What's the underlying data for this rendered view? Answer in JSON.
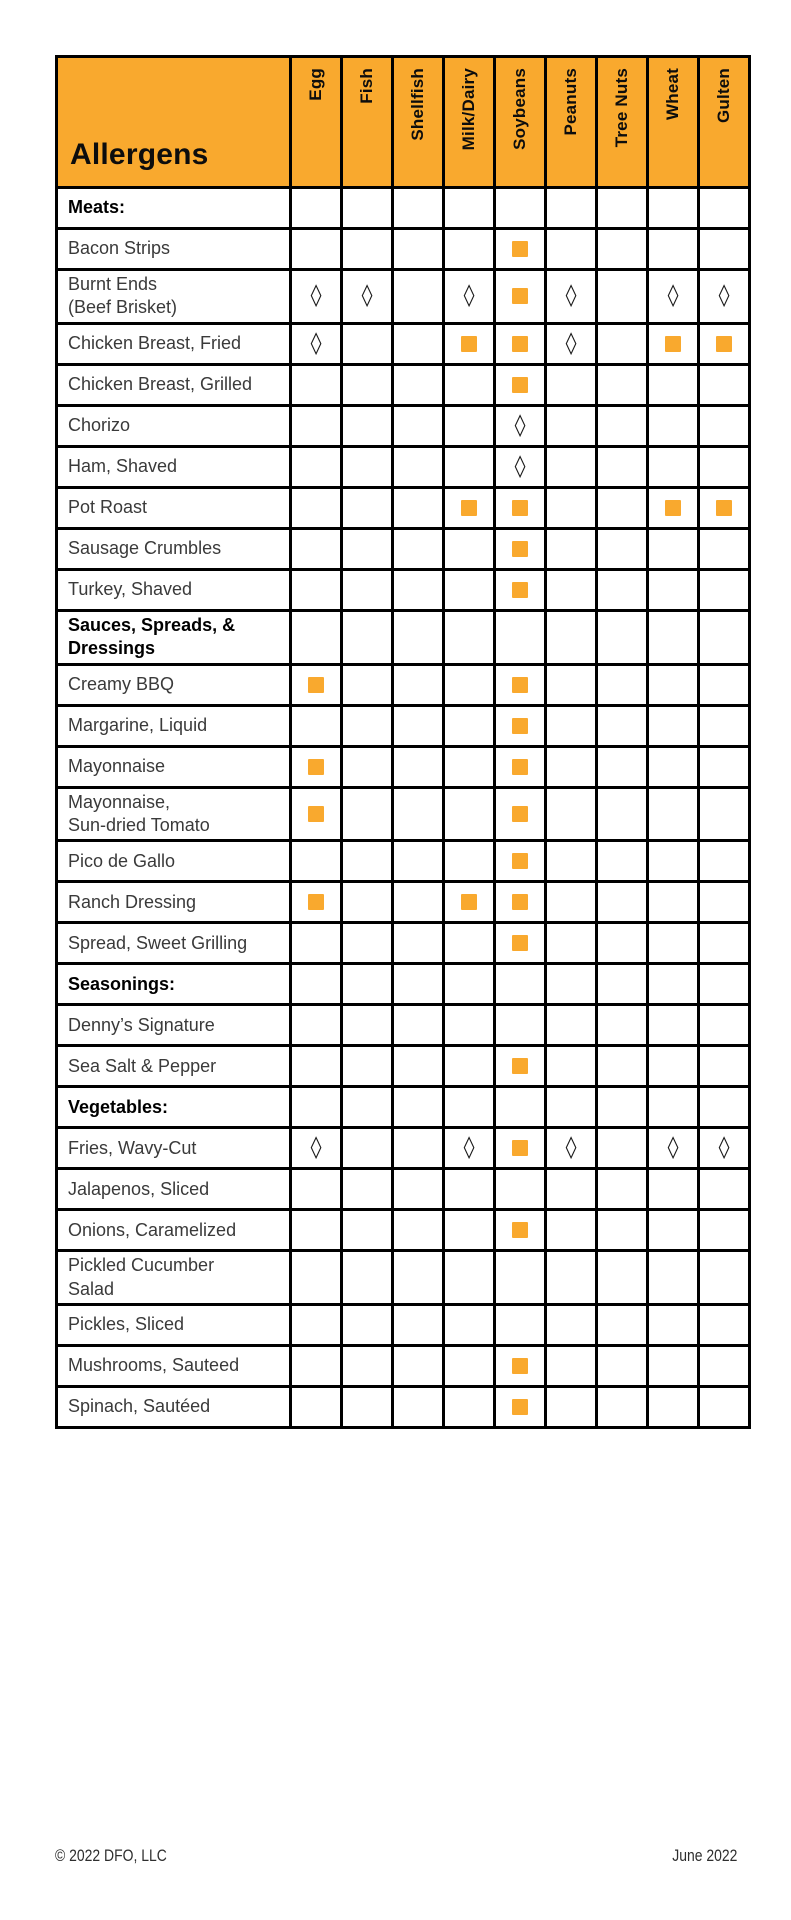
{
  "colors": {
    "accent": "#F9A92E",
    "grid": "#000000",
    "text": "#3a3a3a",
    "heading_text": "#0d0d0d"
  },
  "marks": {
    "square_glyph": "■",
    "square_meaning": "contains-allergen",
    "diamond_glyph": "◊",
    "diamond_meaning": "may-contain-allergen"
  },
  "table": {
    "corner_label": "Allergens",
    "columns": [
      "Egg",
      "Fish",
      "Shellfish",
      "Milk/Dairy",
      "Soybeans",
      "Peanuts",
      "Tree Nuts",
      "Wheat",
      "Gulten"
    ],
    "rows": [
      {
        "label": "Meats:",
        "section": true,
        "marks": [
          "",
          "",
          "",
          "",
          "",
          "",
          "",
          "",
          ""
        ]
      },
      {
        "label": "Bacon Strips",
        "section": false,
        "marks": [
          "",
          "",
          "",
          "",
          "square",
          "",
          "",
          "",
          ""
        ]
      },
      {
        "label": "Burnt Ends\n(Beef Brisket)",
        "section": false,
        "marks": [
          "diamond",
          "diamond",
          "",
          "diamond",
          "square",
          "diamond",
          "",
          "diamond",
          "diamond"
        ]
      },
      {
        "label": "Chicken Breast, Fried",
        "section": false,
        "marks": [
          "diamond",
          "",
          "",
          "square",
          "square",
          "diamond",
          "",
          "square",
          "square"
        ]
      },
      {
        "label": "Chicken Breast, Grilled",
        "section": false,
        "marks": [
          "",
          "",
          "",
          "",
          "square",
          "",
          "",
          "",
          ""
        ]
      },
      {
        "label": "Chorizo",
        "section": false,
        "marks": [
          "",
          "",
          "",
          "",
          "diamond",
          "",
          "",
          "",
          ""
        ]
      },
      {
        "label": "Ham, Shaved",
        "section": false,
        "marks": [
          "",
          "",
          "",
          "",
          "diamond",
          "",
          "",
          "",
          ""
        ]
      },
      {
        "label": "Pot Roast",
        "section": false,
        "marks": [
          "",
          "",
          "",
          "square",
          "square",
          "",
          "",
          "square",
          "square"
        ]
      },
      {
        "label": "Sausage Crumbles",
        "section": false,
        "marks": [
          "",
          "",
          "",
          "",
          "square",
          "",
          "",
          "",
          ""
        ]
      },
      {
        "label": "Turkey, Shaved",
        "section": false,
        "marks": [
          "",
          "",
          "",
          "",
          "square",
          "",
          "",
          "",
          ""
        ]
      },
      {
        "label": "Sauces, Spreads, &\nDressings",
        "section": true,
        "marks": [
          "",
          "",
          "",
          "",
          "",
          "",
          "",
          "",
          ""
        ]
      },
      {
        "label": "Creamy BBQ",
        "section": false,
        "marks": [
          "square",
          "",
          "",
          "",
          "square",
          "",
          "",
          "",
          ""
        ]
      },
      {
        "label": "Margarine, Liquid",
        "section": false,
        "marks": [
          "",
          "",
          "",
          "",
          "square",
          "",
          "",
          "",
          ""
        ]
      },
      {
        "label": "Mayonnaise",
        "section": false,
        "marks": [
          "square",
          "",
          "",
          "",
          "square",
          "",
          "",
          "",
          ""
        ]
      },
      {
        "label": "Mayonnaise,\nSun-dried Tomato",
        "section": false,
        "marks": [
          "square",
          "",
          "",
          "",
          "square",
          "",
          "",
          "",
          ""
        ]
      },
      {
        "label": "Pico de Gallo",
        "section": false,
        "marks": [
          "",
          "",
          "",
          "",
          "square",
          "",
          "",
          "",
          ""
        ]
      },
      {
        "label": "Ranch Dressing",
        "section": false,
        "marks": [
          "square",
          "",
          "",
          "square",
          "square",
          "",
          "",
          "",
          ""
        ]
      },
      {
        "label": "Spread, Sweet Grilling",
        "section": false,
        "marks": [
          "",
          "",
          "",
          "",
          "square",
          "",
          "",
          "",
          ""
        ]
      },
      {
        "label": "Seasonings:",
        "section": true,
        "marks": [
          "",
          "",
          "",
          "",
          "",
          "",
          "",
          "",
          ""
        ]
      },
      {
        "label": "Denny’s Signature",
        "section": false,
        "marks": [
          "",
          "",
          "",
          "",
          "",
          "",
          "",
          "",
          ""
        ]
      },
      {
        "label": "Sea Salt & Pepper",
        "section": false,
        "marks": [
          "",
          "",
          "",
          "",
          "square",
          "",
          "",
          "",
          ""
        ]
      },
      {
        "label": "Vegetables:",
        "section": true,
        "marks": [
          "",
          "",
          "",
          "",
          "",
          "",
          "",
          "",
          ""
        ]
      },
      {
        "label": "Fries, Wavy-Cut",
        "section": false,
        "marks": [
          "diamond",
          "",
          "",
          "diamond",
          "square",
          "diamond",
          "",
          "diamond",
          "diamond"
        ]
      },
      {
        "label": "Jalapenos, Sliced",
        "section": false,
        "marks": [
          "",
          "",
          "",
          "",
          "",
          "",
          "",
          "",
          ""
        ]
      },
      {
        "label": "Onions, Caramelized",
        "section": false,
        "marks": [
          "",
          "",
          "",
          "",
          "square",
          "",
          "",
          "",
          ""
        ]
      },
      {
        "label": "Pickled Cucumber\nSalad",
        "section": false,
        "marks": [
          "",
          "",
          "",
          "",
          "",
          "",
          "",
          "",
          ""
        ]
      },
      {
        "label": "Pickles, Sliced",
        "section": false,
        "marks": [
          "",
          "",
          "",
          "",
          "",
          "",
          "",
          "",
          ""
        ]
      },
      {
        "label": "Mushrooms, Sauteed",
        "section": false,
        "marks": [
          "",
          "",
          "",
          "",
          "square",
          "",
          "",
          "",
          ""
        ]
      },
      {
        "label": "Spinach, Sautéed",
        "section": false,
        "marks": [
          "",
          "",
          "",
          "",
          "square",
          "",
          "",
          "",
          ""
        ]
      }
    ]
  },
  "footer": {
    "left": "© 2022 DFO, LLC",
    "right": "June 2022"
  }
}
